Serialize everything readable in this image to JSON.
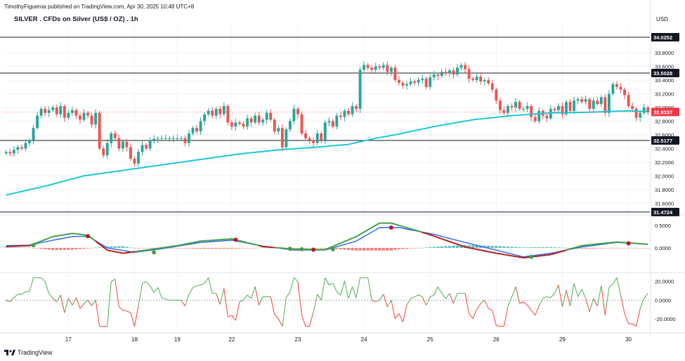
{
  "header": {
    "published_by": "TimothyFigueroa published on TradingView.com, Apr 30, 2025 10:48 UTC+8",
    "chart_title": "SILVER . CFDs on Silver (US$ / OZ) . 1h",
    "currency": "USD",
    "brand": "TradingView"
  },
  "colors": {
    "bull": "#26a69a",
    "bear": "#ef5350",
    "ma": "#1ec8d8",
    "hline": "#131722",
    "macd": "#2962ff",
    "signal_up": "#43a047",
    "signal_down": "#b71c1c",
    "osc_up": "#4caf50",
    "osc_down": "#f44336",
    "price_label": "#f23645"
  },
  "chart_data": [
    {
      "type": "candlestick",
      "title": "SILVER . CFDs on Silver (US$ / OZ) . 1h",
      "ylabel": "USD",
      "ylim": [
        31.45,
        34.2
      ],
      "y_ticks": [
        "33.8000",
        "33.6000",
        "33.4000",
        "33.2000",
        "33.0000",
        "32.8000",
        "32.6000",
        "32.4000",
        "32.2000",
        "32.0000",
        "31.8000",
        "31.6000"
      ],
      "x_ticks": [
        {
          "label": "17",
          "i": 16
        },
        {
          "label": "18",
          "i": 33
        },
        {
          "label": "19",
          "i": 44
        },
        {
          "label": "22",
          "i": 58
        },
        {
          "label": "23",
          "i": 75
        },
        {
          "label": "24",
          "i": 92
        },
        {
          "label": "25",
          "i": 109
        },
        {
          "label": "26",
          "i": 126
        },
        {
          "label": "29",
          "i": 143
        },
        {
          "label": "30",
          "i": 160
        }
      ],
      "horizontal_levels": [
        "34.0252",
        "33.5028",
        "32.5177",
        "31.4724"
      ],
      "last_price": "32.9337",
      "close": [
        32.35,
        32.33,
        32.38,
        32.42,
        32.4,
        32.48,
        32.52,
        32.7,
        32.88,
        32.98,
        32.92,
        32.96,
        33.0,
        32.9,
        33.02,
        32.85,
        32.92,
        32.96,
        32.88,
        32.82,
        32.92,
        32.88,
        32.75,
        32.92,
        32.4,
        32.3,
        32.48,
        32.62,
        32.55,
        32.4,
        32.5,
        32.42,
        32.25,
        32.18,
        32.35,
        32.45,
        32.4,
        32.52,
        32.54,
        32.55,
        32.55,
        32.55,
        32.55,
        32.55,
        32.55,
        32.55,
        32.48,
        32.62,
        32.7,
        32.65,
        32.8,
        32.9,
        32.95,
        32.88,
        32.98,
        32.9,
        33.02,
        32.78,
        32.72,
        32.78,
        32.76,
        32.72,
        32.84,
        32.78,
        32.88,
        32.78,
        32.82,
        32.92,
        32.82,
        32.65,
        32.7,
        32.42,
        32.68,
        32.8,
        32.98,
        32.9,
        32.62,
        32.55,
        32.52,
        32.48,
        32.62,
        32.52,
        32.78,
        32.8,
        32.72,
        32.88,
        32.86,
        32.95,
        32.9,
        33.02,
        32.98,
        33.55,
        33.62,
        33.58,
        33.55,
        33.6,
        33.58,
        33.62,
        33.52,
        33.58,
        33.4,
        33.36,
        33.32,
        33.34,
        33.38,
        33.36,
        33.4,
        33.42,
        33.3,
        33.44,
        33.48,
        33.46,
        33.52,
        33.5,
        33.54,
        33.48,
        33.58,
        33.62,
        33.56,
        33.42,
        33.4,
        33.45,
        33.38,
        33.4,
        33.35,
        33.26,
        33.1,
        32.96,
        32.92,
        33.02,
        33.0,
        33.08,
        32.98,
        32.98,
        33.02,
        32.86,
        32.8,
        32.95,
        32.88,
        32.84,
        32.98,
        32.96,
        33.02,
        32.9,
        33.08,
        32.95,
        33.1,
        33.12,
        33.08,
        33.12,
        32.98,
        33.1,
        33.05,
        33.15,
        32.92,
        33.2,
        33.34,
        33.3,
        33.26,
        33.18,
        33.02,
        32.98,
        32.85,
        32.92,
        33.0,
        32.93
      ],
      "ma": [
        {
          "i": 0,
          "v": 31.72
        },
        {
          "i": 10,
          "v": 31.85
        },
        {
          "i": 20,
          "v": 32.0
        },
        {
          "i": 30,
          "v": 32.08
        },
        {
          "i": 40,
          "v": 32.16
        },
        {
          "i": 50,
          "v": 32.24
        },
        {
          "i": 60,
          "v": 32.32
        },
        {
          "i": 70,
          "v": 32.38
        },
        {
          "i": 80,
          "v": 32.42
        },
        {
          "i": 88,
          "v": 32.46
        },
        {
          "i": 95,
          "v": 32.55
        },
        {
          "i": 100,
          "v": 32.6
        },
        {
          "i": 110,
          "v": 32.72
        },
        {
          "i": 120,
          "v": 32.82
        },
        {
          "i": 130,
          "v": 32.88
        },
        {
          "i": 140,
          "v": 32.92
        },
        {
          "i": 150,
          "v": 32.93
        },
        {
          "i": 160,
          "v": 32.95
        },
        {
          "i": 165,
          "v": 32.94
        }
      ]
    },
    {
      "type": "macd",
      "y_ticks": [
        "0.5000",
        "0.0000"
      ],
      "ylim": [
        -0.5,
        0.7
      ],
      "macd_line": [
        {
          "i": 0,
          "v": 0.05
        },
        {
          "i": 6,
          "v": 0.06
        },
        {
          "i": 12,
          "v": 0.17
        },
        {
          "i": 17,
          "v": 0.25
        },
        {
          "i": 21,
          "v": 0.26
        },
        {
          "i": 26,
          "v": 0.0
        },
        {
          "i": 33,
          "v": -0.1
        },
        {
          "i": 40,
          "v": -0.02
        },
        {
          "i": 50,
          "v": 0.12
        },
        {
          "i": 58,
          "v": 0.17
        },
        {
          "i": 66,
          "v": 0.04
        },
        {
          "i": 74,
          "v": -0.05
        },
        {
          "i": 82,
          "v": -0.05
        },
        {
          "i": 90,
          "v": 0.15
        },
        {
          "i": 96,
          "v": 0.45
        },
        {
          "i": 101,
          "v": 0.45
        },
        {
          "i": 110,
          "v": 0.3
        },
        {
          "i": 118,
          "v": 0.12
        },
        {
          "i": 126,
          "v": -0.05
        },
        {
          "i": 133,
          "v": -0.2
        },
        {
          "i": 140,
          "v": -0.12
        },
        {
          "i": 148,
          "v": 0.02
        },
        {
          "i": 157,
          "v": 0.12
        },
        {
          "i": 165,
          "v": 0.08
        }
      ],
      "signal_line": [
        {
          "i": 0,
          "v": 0.03
        },
        {
          "i": 6,
          "v": 0.05
        },
        {
          "i": 12,
          "v": 0.25
        },
        {
          "i": 17,
          "v": 0.32
        },
        {
          "i": 21,
          "v": 0.28
        },
        {
          "i": 26,
          "v": -0.05
        },
        {
          "i": 30,
          "v": -0.12
        },
        {
          "i": 36,
          "v": -0.05
        },
        {
          "i": 44,
          "v": 0.05
        },
        {
          "i": 50,
          "v": 0.15
        },
        {
          "i": 58,
          "v": 0.2
        },
        {
          "i": 66,
          "v": 0.03
        },
        {
          "i": 74,
          "v": -0.03
        },
        {
          "i": 82,
          "v": -0.04
        },
        {
          "i": 90,
          "v": 0.25
        },
        {
          "i": 96,
          "v": 0.55
        },
        {
          "i": 99,
          "v": 0.55
        },
        {
          "i": 108,
          "v": 0.32
        },
        {
          "i": 118,
          "v": 0.02
        },
        {
          "i": 126,
          "v": -0.12
        },
        {
          "i": 133,
          "v": -0.22
        },
        {
          "i": 140,
          "v": -0.15
        },
        {
          "i": 148,
          "v": 0.05
        },
        {
          "i": 157,
          "v": 0.13
        },
        {
          "i": 165,
          "v": 0.08
        }
      ],
      "cross_points": [
        {
          "i": 7,
          "v": 0.06,
          "dir": "up"
        },
        {
          "i": 21,
          "v": 0.26,
          "dir": "down"
        },
        {
          "i": 38,
          "v": -0.1,
          "dir": "up"
        },
        {
          "i": 59,
          "v": 0.18,
          "dir": "down"
        },
        {
          "i": 73,
          "v": -0.02,
          "dir": "up"
        },
        {
          "i": 76,
          "v": -0.03,
          "dir": "up"
        },
        {
          "i": 79,
          "v": -0.04,
          "dir": "down"
        },
        {
          "i": 84,
          "v": -0.03,
          "dir": "up"
        },
        {
          "i": 99,
          "v": 0.45,
          "dir": "down"
        },
        {
          "i": 135,
          "v": -0.2,
          "dir": "up"
        },
        {
          "i": 160,
          "v": 0.1,
          "dir": "down"
        }
      ]
    },
    {
      "type": "oscillator",
      "y_ticks": [
        "20.0000",
        "0.0000",
        "-20.0000"
      ],
      "ylim": [
        -32,
        28
      ],
      "note": "momentum oscillator, green above zero / red below zero"
    }
  ]
}
